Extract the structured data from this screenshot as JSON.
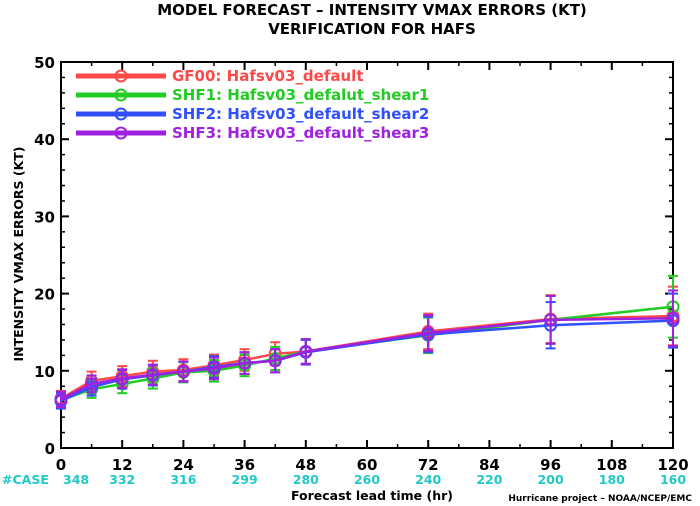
{
  "chart_data": {
    "type": "line",
    "title": "MODEL FORECAST – INTENSITY VMAX ERRORS (KT)",
    "subtitle": "VERIFICATION FOR HAFS",
    "xlabel": "Forecast lead time (hr)",
    "ylabel": "INTENSITY VMAX ERRORS  (KT)",
    "xlim": [
      0,
      120
    ],
    "ylim": [
      0,
      50
    ],
    "x_ticks": [
      0,
      12,
      24,
      36,
      48,
      60,
      72,
      84,
      96,
      108,
      120
    ],
    "x_tick_labels": [
      "0",
      "12",
      "24",
      "36",
      "48",
      "60",
      "72",
      "84",
      "96",
      "108",
      "120"
    ],
    "y_ticks": [
      0,
      10,
      20,
      30,
      40,
      50
    ],
    "y_tick_labels": [
      "0",
      "10",
      "20",
      "30",
      "40",
      "50"
    ],
    "grid": false,
    "legend_position": "top-left",
    "cases": {
      "label": "#CASE",
      "hours": [
        0,
        12,
        24,
        36,
        48,
        60,
        72,
        84,
        96,
        108,
        120
      ],
      "counts": [
        "348",
        "332",
        "316",
        "299",
        "280",
        "260",
        "240",
        "220",
        "200",
        "180",
        "160"
      ],
      "color": "#20c8c8"
    },
    "series": [
      {
        "name": "GF00: Hafsv03_default",
        "color": "#ff4848",
        "x": [
          0,
          6,
          12,
          18,
          24,
          30,
          36,
          42,
          48,
          72,
          96,
          120
        ],
        "y": [
          6.4,
          8.7,
          9.3,
          9.9,
          10.1,
          10.7,
          11.4,
          12.2,
          12.5,
          15.1,
          16.7,
          17.1
        ],
        "err": [
          1.0,
          1.2,
          1.3,
          1.4,
          1.4,
          1.4,
          1.4,
          1.5,
          1.6,
          2.3,
          3.1,
          3.8
        ]
      },
      {
        "name": "SHF1: Hafsv03_defalut_shear1",
        "color": "#22cc22",
        "x": [
          0,
          6,
          12,
          18,
          24,
          30,
          36,
          42,
          48,
          72,
          96,
          120
        ],
        "y": [
          6.2,
          7.6,
          8.3,
          9.0,
          9.8,
          10.0,
          10.7,
          11.6,
          12.5,
          14.6,
          16.6,
          18.3
        ],
        "err": [
          1.0,
          1.1,
          1.2,
          1.3,
          1.3,
          1.4,
          1.4,
          1.5,
          1.6,
          2.3,
          3.1,
          4.0
        ]
      },
      {
        "name": "SHF2: Hafsv03_default_shear2",
        "color": "#3050ff",
        "x": [
          0,
          6,
          12,
          18,
          24,
          30,
          36,
          42,
          48,
          72,
          96,
          120
        ],
        "y": [
          6.1,
          7.9,
          8.9,
          9.4,
          9.9,
          10.5,
          11.0,
          11.3,
          12.4,
          14.7,
          15.9,
          16.5
        ],
        "err": [
          1.0,
          1.1,
          1.2,
          1.3,
          1.3,
          1.4,
          1.4,
          1.5,
          1.6,
          2.3,
          3.0,
          3.5
        ]
      },
      {
        "name": "SHF3: Hafsv03_default_shear3",
        "color": "#a020e0",
        "x": [
          0,
          6,
          12,
          18,
          24,
          30,
          36,
          42,
          48,
          72,
          96,
          120
        ],
        "y": [
          6.3,
          8.3,
          9.0,
          9.5,
          9.9,
          10.3,
          11.0,
          11.3,
          12.5,
          14.9,
          16.6,
          16.8
        ],
        "err": [
          1.0,
          1.1,
          1.2,
          1.3,
          1.3,
          1.4,
          1.4,
          1.5,
          1.6,
          2.3,
          3.1,
          3.6
        ]
      }
    ],
    "footer": "Hurricane project – NOAA/NCEP/EMC"
  }
}
